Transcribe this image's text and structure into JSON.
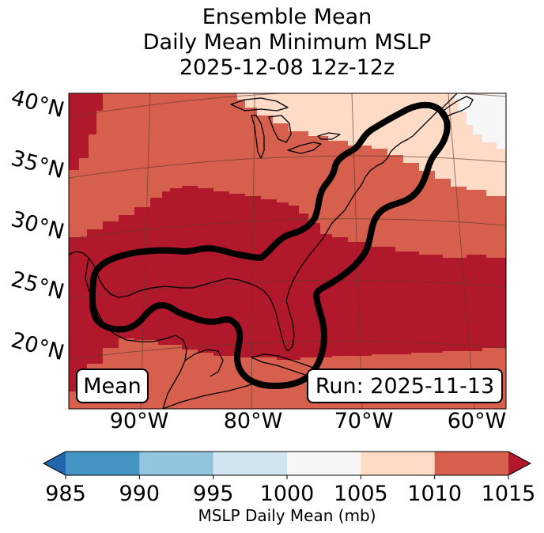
{
  "title": {
    "line1": "Ensemble Mean",
    "line2": "Daily Mean Minimum MSLP",
    "line3": "2025-12-08 12z-12z"
  },
  "map": {
    "lat_labels": [
      "40°N",
      "35°N",
      "30°N",
      "25°N",
      "20°N"
    ],
    "lon_labels": [
      "90°W",
      "80°W",
      "70°W",
      "60°W"
    ],
    "mean_box": "Mean",
    "run_box": "Run: 2025-11-13"
  },
  "colorbar": {
    "ticks": [
      "985",
      "990",
      "995",
      "1000",
      "1005",
      "1010",
      "1015"
    ],
    "label": "MSLP Daily Mean (mb)",
    "colors": [
      "#2166ac",
      "#4393c3",
      "#92c5de",
      "#d1e5f0",
      "#f7f7f7",
      "#fddbc7",
      "#d6604d",
      "#b2182b"
    ]
  },
  "colors": {
    "band_1015_plus": "#b2182b",
    "band_1010_1015": "#d6604d",
    "band_1005_1010": "#fddbc7",
    "band_1000_1005": "#f7f7f7",
    "ensemble_contour": "#000000"
  }
}
